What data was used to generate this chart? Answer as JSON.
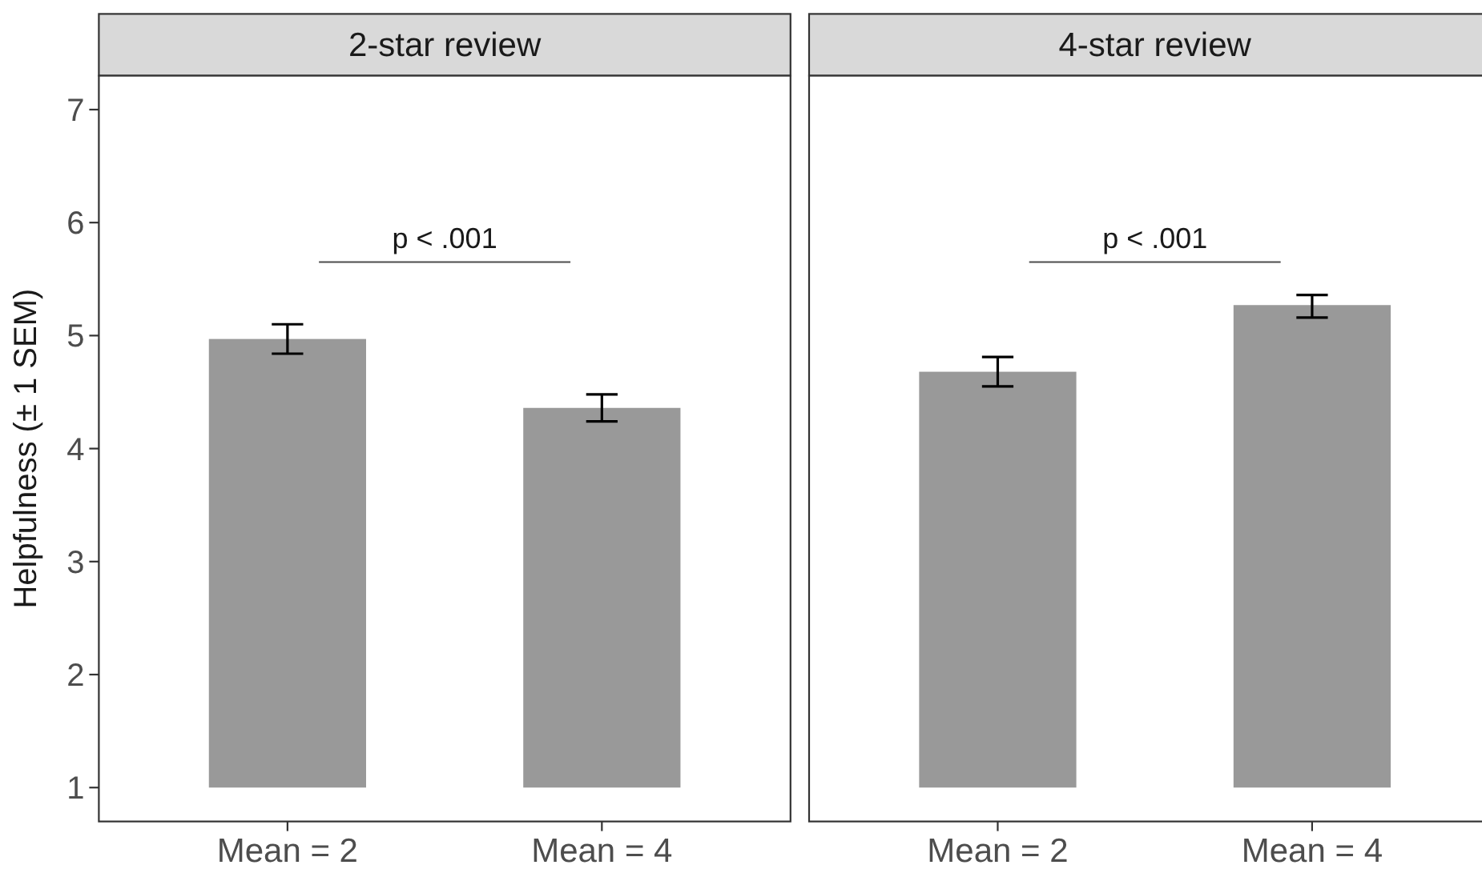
{
  "chart_data": [
    {
      "type": "bar",
      "title": "2-star review",
      "ylabel": "Helpfulness (± 1 SEM)",
      "categories": [
        "Mean = 2",
        "Mean = 4"
      ],
      "base": [
        1,
        1
      ],
      "values": [
        3.97,
        3.36
      ],
      "errors": [
        [
          4.84,
          5.1
        ],
        [
          4.24,
          4.48
        ]
      ],
      "color": "#999999",
      "ylim": [
        0.7,
        7.3
      ],
      "yticks": [
        1,
        2,
        3,
        4,
        5,
        6,
        7
      ],
      "annotations": [
        "p < .001"
      ]
    },
    {
      "type": "bar",
      "title": "4-star review",
      "categories": [
        "Mean = 2",
        "Mean = 4"
      ],
      "base": [
        1,
        1
      ],
      "values": [
        3.68,
        4.27
      ],
      "errors": [
        [
          4.55,
          4.81
        ],
        [
          5.16,
          5.36
        ]
      ],
      "color": "#999999",
      "ylim": [
        0.7,
        7.3
      ],
      "tick_labels": "x",
      "annotations": [
        "p < .001"
      ]
    }
  ]
}
